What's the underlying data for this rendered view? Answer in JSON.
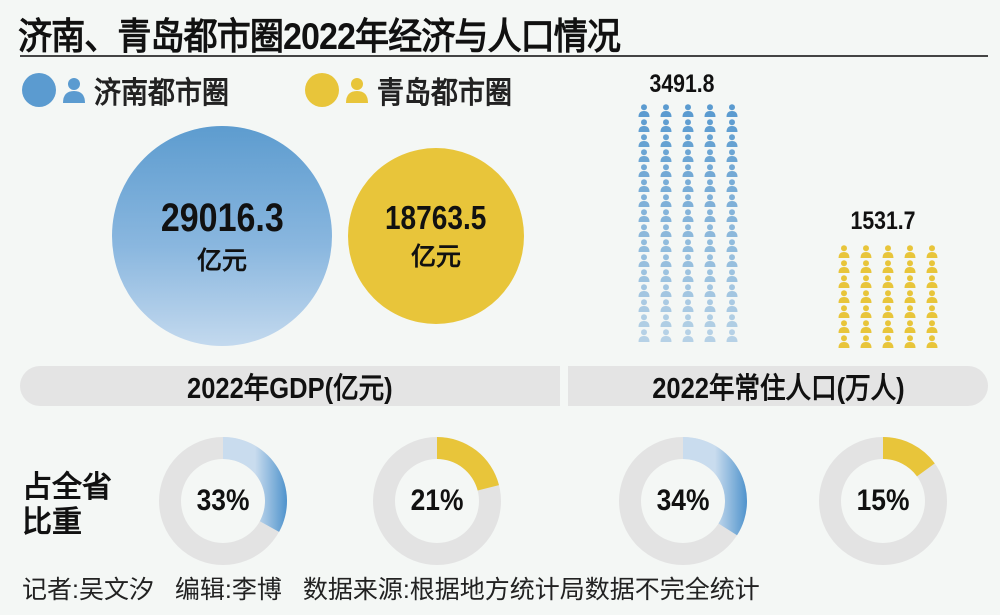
{
  "title": "济南、青岛都市圈2022年经济与人口情况",
  "legend": [
    {
      "label": "济南都市圈",
      "color": "#5b9bd0"
    },
    {
      "label": "青岛都市圈",
      "color": "#e8c53a"
    }
  ],
  "gdp": {
    "section_label": "2022年GDP(亿元)",
    "unit": "亿元",
    "items": [
      {
        "name": "济南都市圈",
        "value": "29016.3"
      },
      {
        "name": "青岛都市圈",
        "value": "18763.5"
      }
    ]
  },
  "population": {
    "section_label": "2022年常住人口(万人)",
    "items": [
      {
        "name": "济南都市圈",
        "value": "3491.8"
      },
      {
        "name": "青岛都市圈",
        "value": "1531.7"
      }
    ]
  },
  "share": {
    "label_line1": "占全省",
    "label_line2": "比重",
    "items": [
      {
        "group": "GDP",
        "name": "济南都市圈",
        "percent": 33,
        "text": "33%"
      },
      {
        "group": "GDP",
        "name": "青岛都市圈",
        "percent": 21,
        "text": "21%"
      },
      {
        "group": "人口",
        "name": "济南都市圈",
        "percent": 34,
        "text": "34%"
      },
      {
        "group": "人口",
        "name": "青岛都市圈",
        "percent": 15,
        "text": "15%"
      }
    ]
  },
  "footer": {
    "reporter": "记者:吴文汐",
    "editor": "编辑:李博",
    "source": "数据来源:根据地方统计局数据不完全统计"
  },
  "chart_data": [
    {
      "type": "bubble",
      "title": "2022年GDP(亿元)",
      "categories": [
        "济南都市圈",
        "青岛都市圈"
      ],
      "values": [
        29016.3,
        18763.5
      ],
      "unit": "亿元"
    },
    {
      "type": "pictogram",
      "title": "2022年常住人口(万人)",
      "categories": [
        "济南都市圈",
        "青岛都市圈"
      ],
      "values": [
        3491.8,
        1531.7
      ],
      "icon_rows": [
        16,
        7
      ],
      "icon_cols": 5
    },
    {
      "type": "pie",
      "title": "占全省比重",
      "series": [
        {
          "name": "GDP 济南都市圈",
          "values": [
            33
          ]
        },
        {
          "name": "GDP 青岛都市圈",
          "values": [
            21
          ]
        },
        {
          "name": "常住人口 济南都市圈",
          "values": [
            34
          ]
        },
        {
          "name": "常住人口 青岛都市圈",
          "values": [
            15
          ]
        }
      ]
    }
  ]
}
